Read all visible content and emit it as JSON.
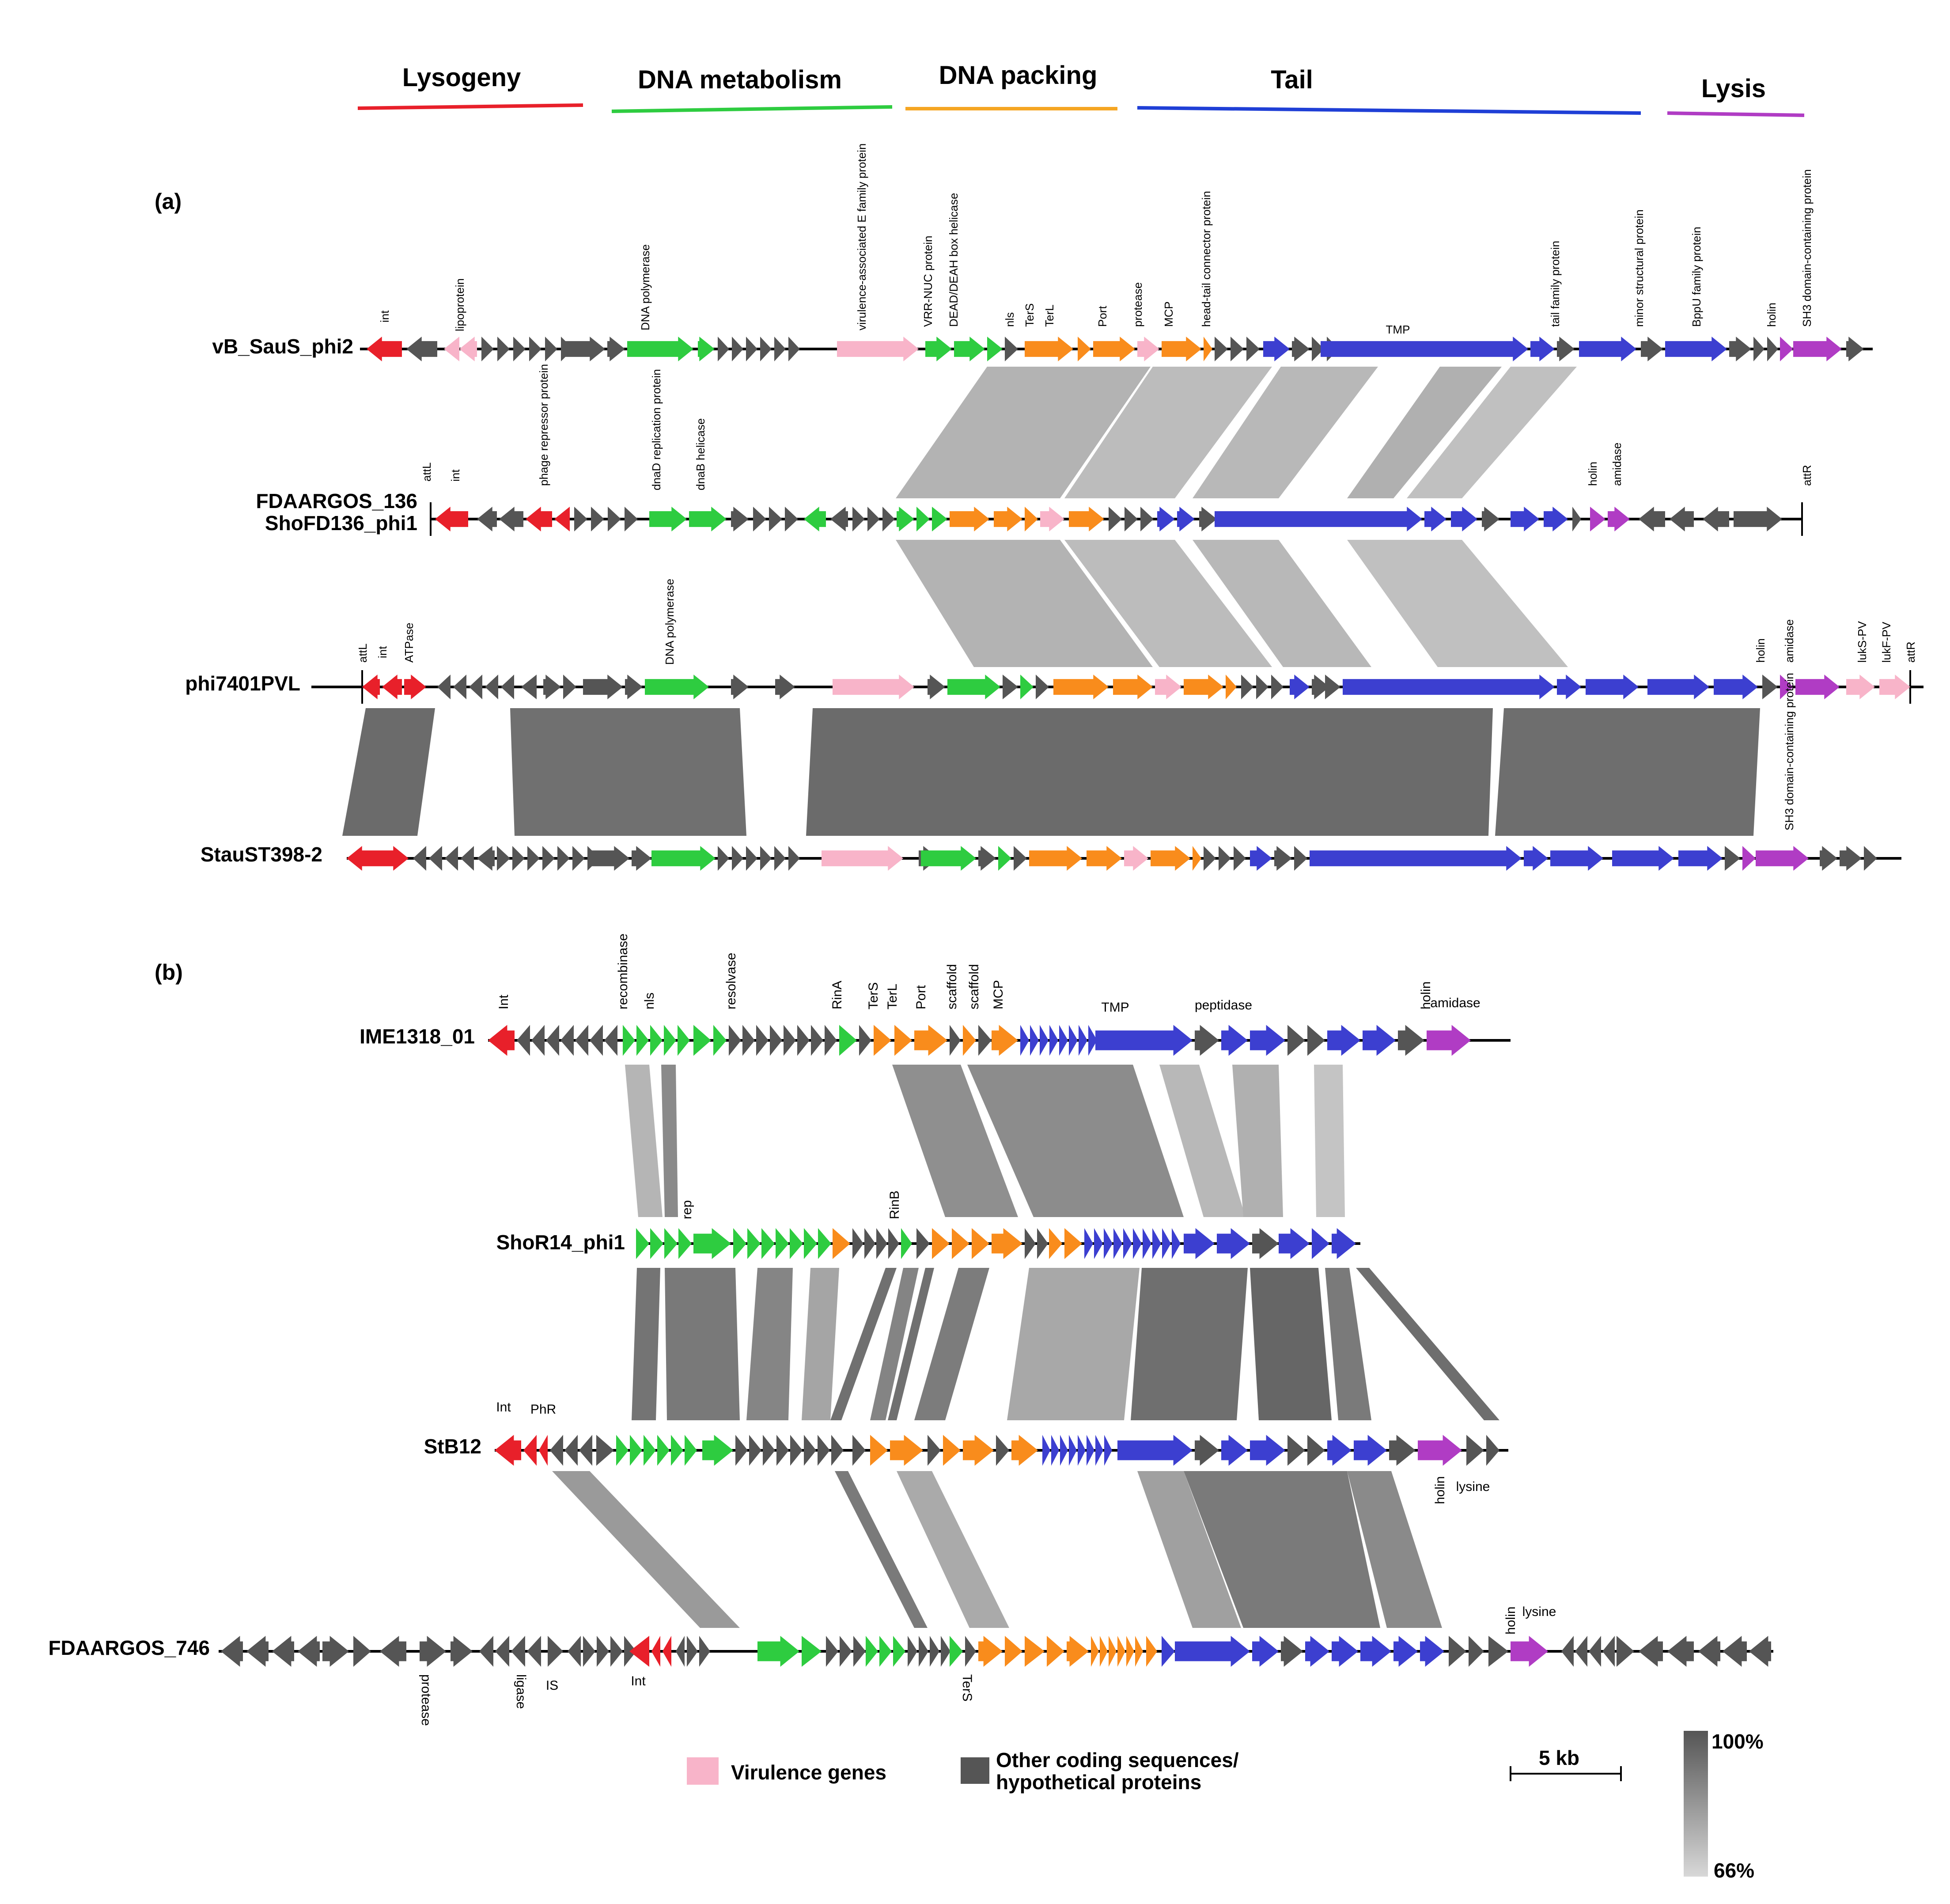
{
  "categories": [
    {
      "label": "Lysogeny",
      "color": "#e8202a"
    },
    {
      "label": "DNA metabolism",
      "color": "#2ecc40"
    },
    {
      "label": "DNA packing",
      "color": "#f5a623"
    },
    {
      "label": "Tail",
      "color": "#1f3fd6"
    },
    {
      "label": "Lysis",
      "color": "#b03cc4"
    }
  ],
  "panels": {
    "a": "(a)",
    "b": "(b)"
  },
  "colors": {
    "lysogeny": "#e8202a",
    "dna": "#2ecc40",
    "pack": "#f98c1c",
    "tail": "#3c3fd0",
    "lysis": "#b03cc4",
    "virulence": "#f8b4c9",
    "other": "#555555",
    "line": "#000000"
  },
  "genomes": {
    "vB_SauS_phi2": {
      "name": "vB_SauS_phi2",
      "annotations": [
        "int",
        "lipoprotein",
        "DNA polymerase",
        "virulence-associated E family protein",
        "VRR-NUC protein",
        "DEAD/DEAH box helicase",
        "nls",
        "TerS",
        "TerL",
        "Port",
        "protease",
        "MCP",
        "head-tail connector protein",
        "TMP",
        "tail family protein",
        "minor structural protein",
        "BppU family protein",
        "holin",
        "SH3 domain-containing protein"
      ]
    },
    "FDAARGOS_136": {
      "name1": "FDAARGOS_136",
      "name2": "ShoFD136_phi1",
      "annotations": [
        "attL",
        "int",
        "phage repressor protein",
        "dnaD replication protein",
        "dnaB helicase",
        "holin",
        "amidase",
        "attR"
      ]
    },
    "phi7401PVL": {
      "name": "phi7401PVL",
      "annotations": [
        "attL",
        "int",
        "ATPase",
        "DNA polymerase",
        "holin",
        "amidase",
        "lukS-PV",
        "lukF-PV",
        "attR"
      ]
    },
    "StauST398-2": {
      "name": "StauST398-2",
      "annotations": [
        "SH3 domain-containing protein"
      ]
    },
    "IME1318_01": {
      "name": "IME1318_01",
      "annotations": [
        "Int",
        "recombinase",
        "nls",
        "resolvase",
        "RinA",
        "TerS",
        "TerL",
        "Port",
        "scaffold",
        "scaffold",
        "MCP",
        "TMP",
        "peptidase",
        "holin",
        "amidase"
      ]
    },
    "ShoR14_phi1": {
      "name": "ShoR14_phi1",
      "annotations": [
        "rep",
        "RinB"
      ]
    },
    "StB12": {
      "name": "StB12",
      "annotations": [
        "Int",
        "PhR",
        "holin",
        "lysine"
      ]
    },
    "FDAARGOS_746": {
      "name": "FDAARGOS_746",
      "annotations": [
        "protease",
        "ligase",
        "IS",
        "Int",
        "TerS",
        "holin",
        "lysine"
      ]
    }
  },
  "legend": {
    "virulence": "Virulence genes",
    "other_line1": "Other coding sequences/",
    "other_line2": "hypothetical proteins",
    "scale": "5 kb",
    "identity_max": "100%",
    "identity_min": "66%"
  }
}
